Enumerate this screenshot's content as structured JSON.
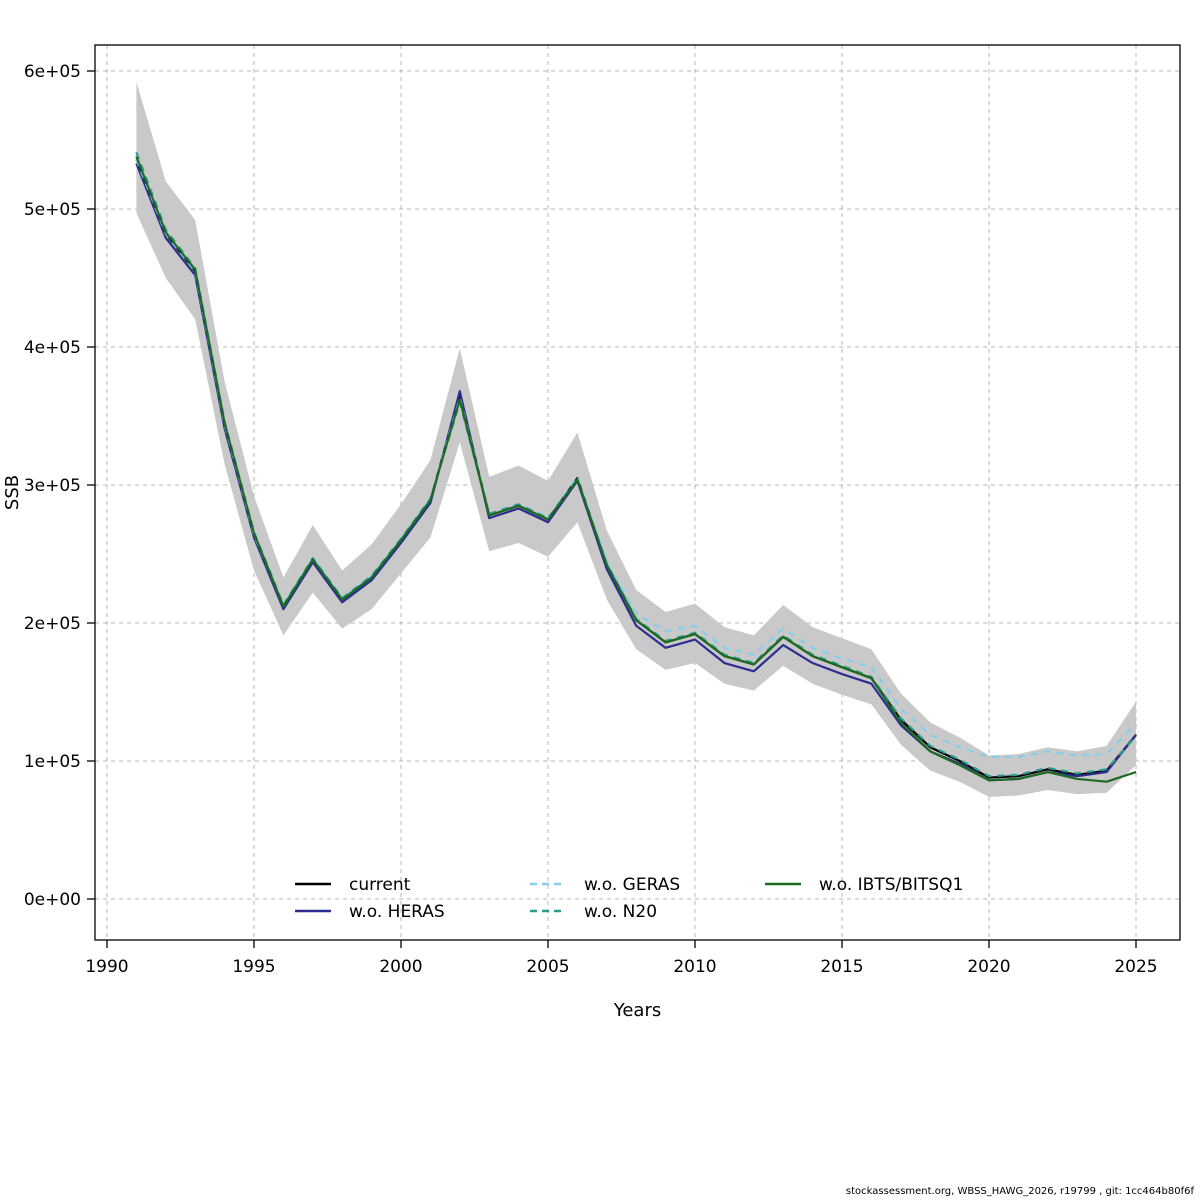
{
  "figure": {
    "footer": "stockassessment.org, WBSS_HAWG_2026, r19799 , git: 1cc464b80f6f"
  },
  "chart_data": {
    "type": "line",
    "title": "",
    "xlabel": "Years",
    "ylabel": "SSB",
    "xlim": [
      1989.6,
      2026.5
    ],
    "ylim": [
      0,
      620000
    ],
    "grid": "dashed-both-axes",
    "legend_position": "bottom-center-inside",
    "x_ticks": [
      1990,
      1995,
      2000,
      2005,
      2010,
      2015,
      2020,
      2025
    ],
    "y_ticks": [
      0,
      100000,
      200000,
      300000,
      400000,
      500000,
      600000
    ],
    "y_tick_labels": [
      "0e+00",
      "1e+05",
      "2e+05",
      "3e+05",
      "4e+05",
      "5e+05",
      "6e+05"
    ],
    "x": [
      1991,
      1992,
      1993,
      1994,
      1995,
      1996,
      1997,
      1998,
      1999,
      2000,
      2001,
      2002,
      2003,
      2004,
      2005,
      2006,
      2007,
      2008,
      2009,
      2010,
      2011,
      2012,
      2013,
      2014,
      2015,
      2016,
      2017,
      2018,
      2019,
      2020,
      2021,
      2022,
      2023,
      2024,
      2025
    ],
    "band": {
      "name": "confidence-band",
      "color": "#c9c9c9",
      "lower": [
        497000,
        450000,
        420000,
        315000,
        238000,
        191000,
        222000,
        196000,
        210000,
        236000,
        262000,
        331000,
        252000,
        258000,
        248000,
        273000,
        217000,
        181000,
        166000,
        171000,
        156000,
        151000,
        169000,
        156000,
        148000,
        141000,
        112000,
        93000,
        85000,
        74000,
        75000,
        79000,
        76000,
        77000,
        97000
      ],
      "upper": [
        592000,
        520000,
        492000,
        375000,
        292000,
        233000,
        271000,
        238000,
        257000,
        286000,
        318000,
        399000,
        306000,
        314000,
        303000,
        338000,
        267000,
        224000,
        208000,
        214000,
        197000,
        191000,
        213000,
        197000,
        189000,
        181000,
        149000,
        128000,
        117000,
        104000,
        105000,
        110000,
        107000,
        111000,
        143000
      ]
    },
    "series": [
      {
        "name": "current",
        "color": "#000000",
        "dash": "solid",
        "values": [
          536000,
          482000,
          455000,
          344000,
          264000,
          212000,
          246000,
          217000,
          233000,
          260000,
          289000,
          365000,
          278000,
          285000,
          275000,
          305000,
          242000,
          202000,
          186000,
          192000,
          176000,
          170000,
          190000,
          176000,
          168000,
          160000,
          130000,
          110000,
          100000,
          88000,
          89000,
          94000,
          90000,
          93000,
          119000
        ]
      },
      {
        "name": "w.o. HERAS",
        "color": "#2d2d8f",
        "dash": "solid",
        "values": [
          533000,
          479000,
          452000,
          341000,
          262000,
          210000,
          244000,
          215000,
          231000,
          258000,
          287000,
          368000,
          276000,
          283000,
          273000,
          303000,
          239000,
          198000,
          182000,
          188000,
          171000,
          165000,
          184000,
          171000,
          163000,
          156000,
          126000,
          107000,
          98000,
          86000,
          87000,
          92000,
          89000,
          92000,
          119000
        ]
      },
      {
        "name": "w.o. GERAS",
        "color": "#87ceeb",
        "dash": "dashed",
        "values": [
          536000,
          482000,
          455000,
          344000,
          264000,
          213000,
          247000,
          218000,
          234000,
          261000,
          290000,
          363000,
          279000,
          286000,
          276000,
          306000,
          244000,
          207000,
          194000,
          198000,
          182000,
          177000,
          196000,
          182000,
          174000,
          168000,
          138000,
          119000,
          110000,
          103000,
          103000,
          107000,
          104000,
          105000,
          127000
        ]
      },
      {
        "name": "w.o. N20",
        "color": "#2a9d8f",
        "dash": "dashed",
        "values": [
          541000,
          485000,
          457000,
          346000,
          266000,
          213000,
          247000,
          218000,
          234000,
          261000,
          290000,
          360000,
          279000,
          286000,
          276000,
          304000,
          243000,
          203000,
          187000,
          193000,
          177000,
          171000,
          191000,
          177000,
          169000,
          161000,
          131000,
          111000,
          101000,
          89000,
          90000,
          95000,
          91000,
          94000,
          118000
        ]
      },
      {
        "name": "w.o. IBTS/BITSQ1",
        "color": "#1d6b21",
        "dash": "solid",
        "values": [
          538000,
          483000,
          456000,
          345000,
          265000,
          212000,
          246000,
          217000,
          233000,
          260000,
          289000,
          362000,
          278000,
          285000,
          275000,
          304000,
          242000,
          202000,
          186000,
          192000,
          176000,
          170000,
          190000,
          176000,
          168000,
          160000,
          128000,
          107000,
          97000,
          86000,
          87000,
          92000,
          87000,
          85000,
          92000
        ]
      }
    ]
  }
}
